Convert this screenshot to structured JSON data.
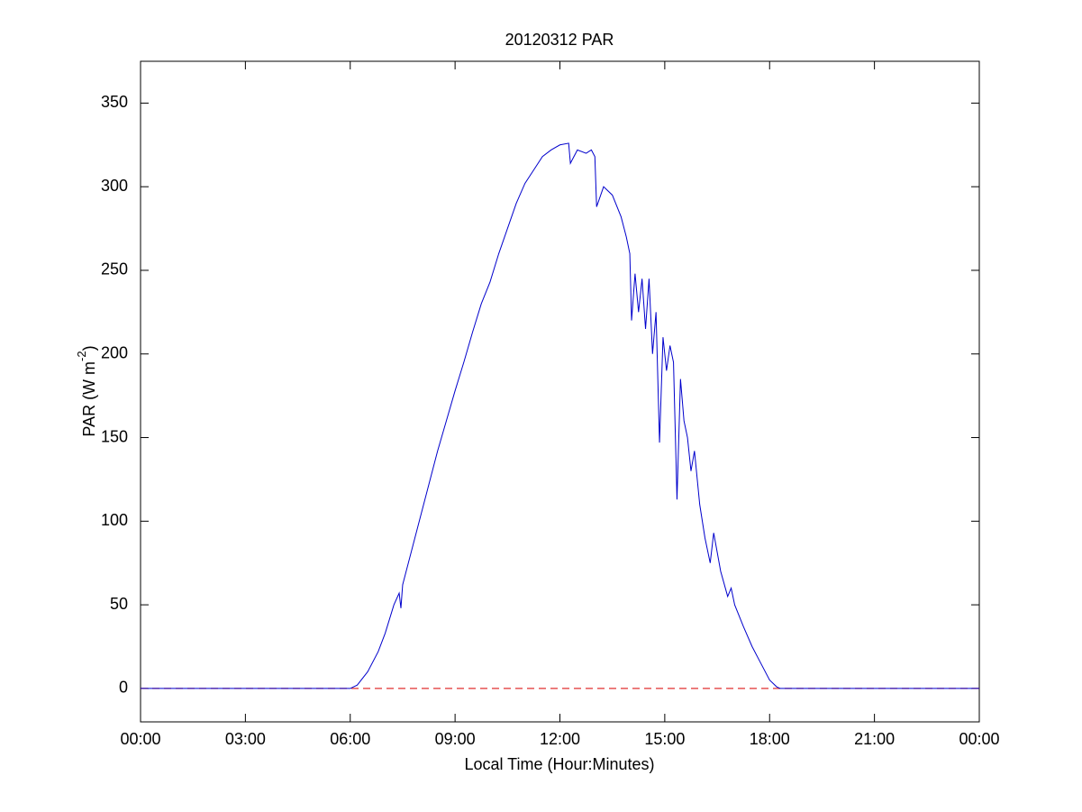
{
  "chart_data": {
    "type": "line",
    "title": "20120312 PAR",
    "xlabel": "Local Time (Hour:Minutes)",
    "ylabel": [
      "PAR (W m",
      "-2",
      ")"
    ],
    "xlim": [
      0,
      24
    ],
    "xticks": [
      {
        "value": 0,
        "label": "00:00"
      },
      {
        "value": 3,
        "label": "03:00"
      },
      {
        "value": 6,
        "label": "06:00"
      },
      {
        "value": 9,
        "label": "09:00"
      },
      {
        "value": 12,
        "label": "12:00"
      },
      {
        "value": 15,
        "label": "15:00"
      },
      {
        "value": 18,
        "label": "18:00"
      },
      {
        "value": 21,
        "label": "21:00"
      },
      {
        "value": 24,
        "label": "00:00"
      }
    ],
    "ylim": [
      -20,
      375
    ],
    "yticks": [
      0,
      50,
      100,
      150,
      200,
      250,
      300,
      350
    ],
    "grid": false,
    "hlines": [
      {
        "value": 0,
        "color": "#e03030",
        "style": "dashed"
      }
    ],
    "series": [
      {
        "color": "#0000cc",
        "x": [
          0,
          6.0,
          6.2,
          6.5,
          6.8,
          7.0,
          7.25,
          7.4,
          7.45,
          7.5,
          7.75,
          8.0,
          8.25,
          8.5,
          8.75,
          9.0,
          9.25,
          9.5,
          9.75,
          10.0,
          10.25,
          10.5,
          10.75,
          11.0,
          11.25,
          11.5,
          11.75,
          12.0,
          12.25,
          12.3,
          12.5,
          12.75,
          12.9,
          13.0,
          13.05,
          13.25,
          13.5,
          13.75,
          13.9,
          14.0,
          14.05,
          14.15,
          14.25,
          14.35,
          14.45,
          14.55,
          14.65,
          14.75,
          14.85,
          14.95,
          15.05,
          15.15,
          15.25,
          15.35,
          15.45,
          15.55,
          15.65,
          15.75,
          15.85,
          16.0,
          16.15,
          16.3,
          16.4,
          16.6,
          16.8,
          16.9,
          17.0,
          17.25,
          17.5,
          17.75,
          18.0,
          18.2,
          18.3,
          24
        ],
        "values": [
          0,
          0,
          2,
          10,
          22,
          33,
          50,
          57,
          48,
          62,
          82,
          102,
          122,
          142,
          160,
          178,
          195,
          213,
          230,
          243,
          260,
          275,
          290,
          302,
          310,
          318,
          322,
          325,
          326,
          314,
          322,
          320,
          322,
          318,
          288,
          300,
          295,
          282,
          270,
          260,
          220,
          248,
          225,
          245,
          215,
          245,
          200,
          225,
          147,
          210,
          190,
          205,
          195,
          113,
          185,
          160,
          150,
          130,
          142,
          110,
          90,
          75,
          93,
          70,
          55,
          60,
          50,
          37,
          25,
          15,
          5,
          1,
          0,
          0
        ]
      }
    ]
  }
}
